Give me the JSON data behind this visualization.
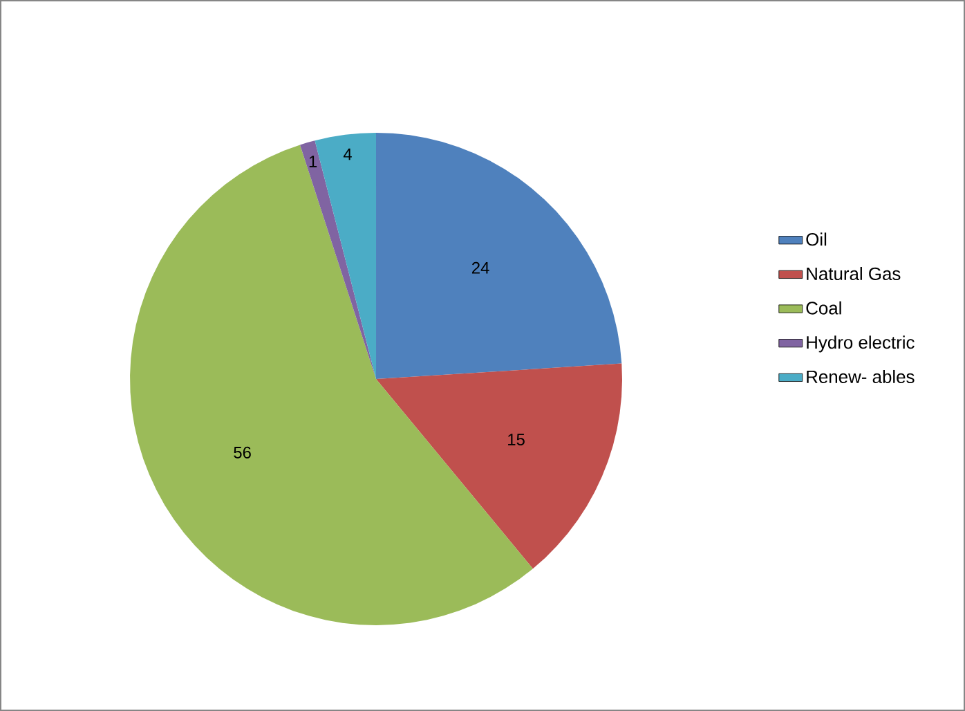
{
  "chart_data": {
    "type": "pie",
    "categories": [
      "Oil",
      "Natural Gas",
      "Coal",
      "Hydro electric",
      "Renew- ables"
    ],
    "values": [
      24,
      15,
      56,
      1,
      4
    ],
    "colors": [
      "#4f81bd",
      "#c0504d",
      "#9bbb59",
      "#8064a2",
      "#4bacc6"
    ],
    "data_labels": true,
    "legend": "right"
  }
}
